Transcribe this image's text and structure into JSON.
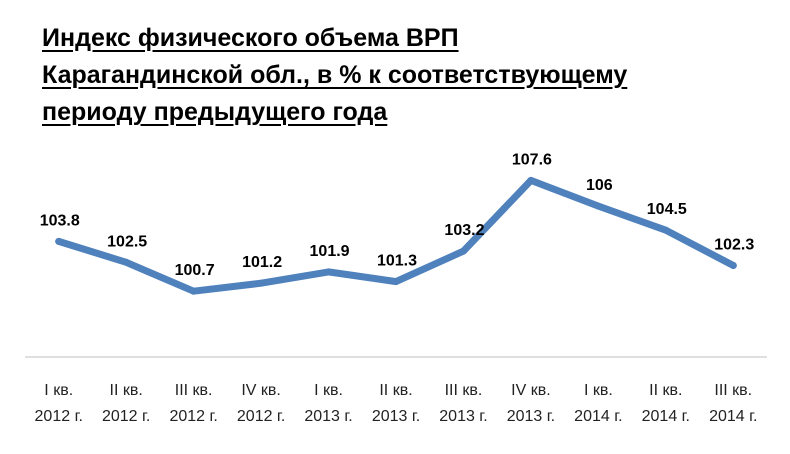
{
  "title_lines": [
    "Индекс физического объема ВРП",
    "Карагандинской обл., в % к соответствующему",
    "периоду предыдущего года"
  ],
  "colors": {
    "line": "#4f81bd",
    "axis": "#bfbfbf"
  },
  "chart_data": {
    "type": "line",
    "title": "Индекс физического объема ВРП Карагандинской обл., в % к соответствующему периоду предыдущего года",
    "categories": [
      [
        "I кв.",
        "2012 г."
      ],
      [
        "II кв.",
        "2012 г."
      ],
      [
        "III кв.",
        "2012 г."
      ],
      [
        "IV кв.",
        "2012 г."
      ],
      [
        "I кв.",
        "2013 г."
      ],
      [
        "II кв.",
        "2013 г."
      ],
      [
        "III кв.",
        "2013 г."
      ],
      [
        "IV кв.",
        "2013 г."
      ],
      [
        "I кв.",
        "2014 г."
      ],
      [
        "II кв.",
        "2014 г."
      ],
      [
        "III кв.",
        "2014 г."
      ]
    ],
    "values": [
      103.8,
      102.5,
      100.7,
      101.2,
      101.9,
      101.3,
      103.2,
      107.6,
      106,
      104.5,
      102.3
    ],
    "value_labels": [
      "103.8",
      "102.5",
      "100.7",
      "101.2",
      "101.9",
      "101.3",
      "103.2",
      "107.6",
      "106",
      "104.5",
      "102.3"
    ],
    "ylim": [
      96.6,
      108
    ],
    "y_axis_visible": false,
    "grid": false,
    "legend": "none"
  }
}
